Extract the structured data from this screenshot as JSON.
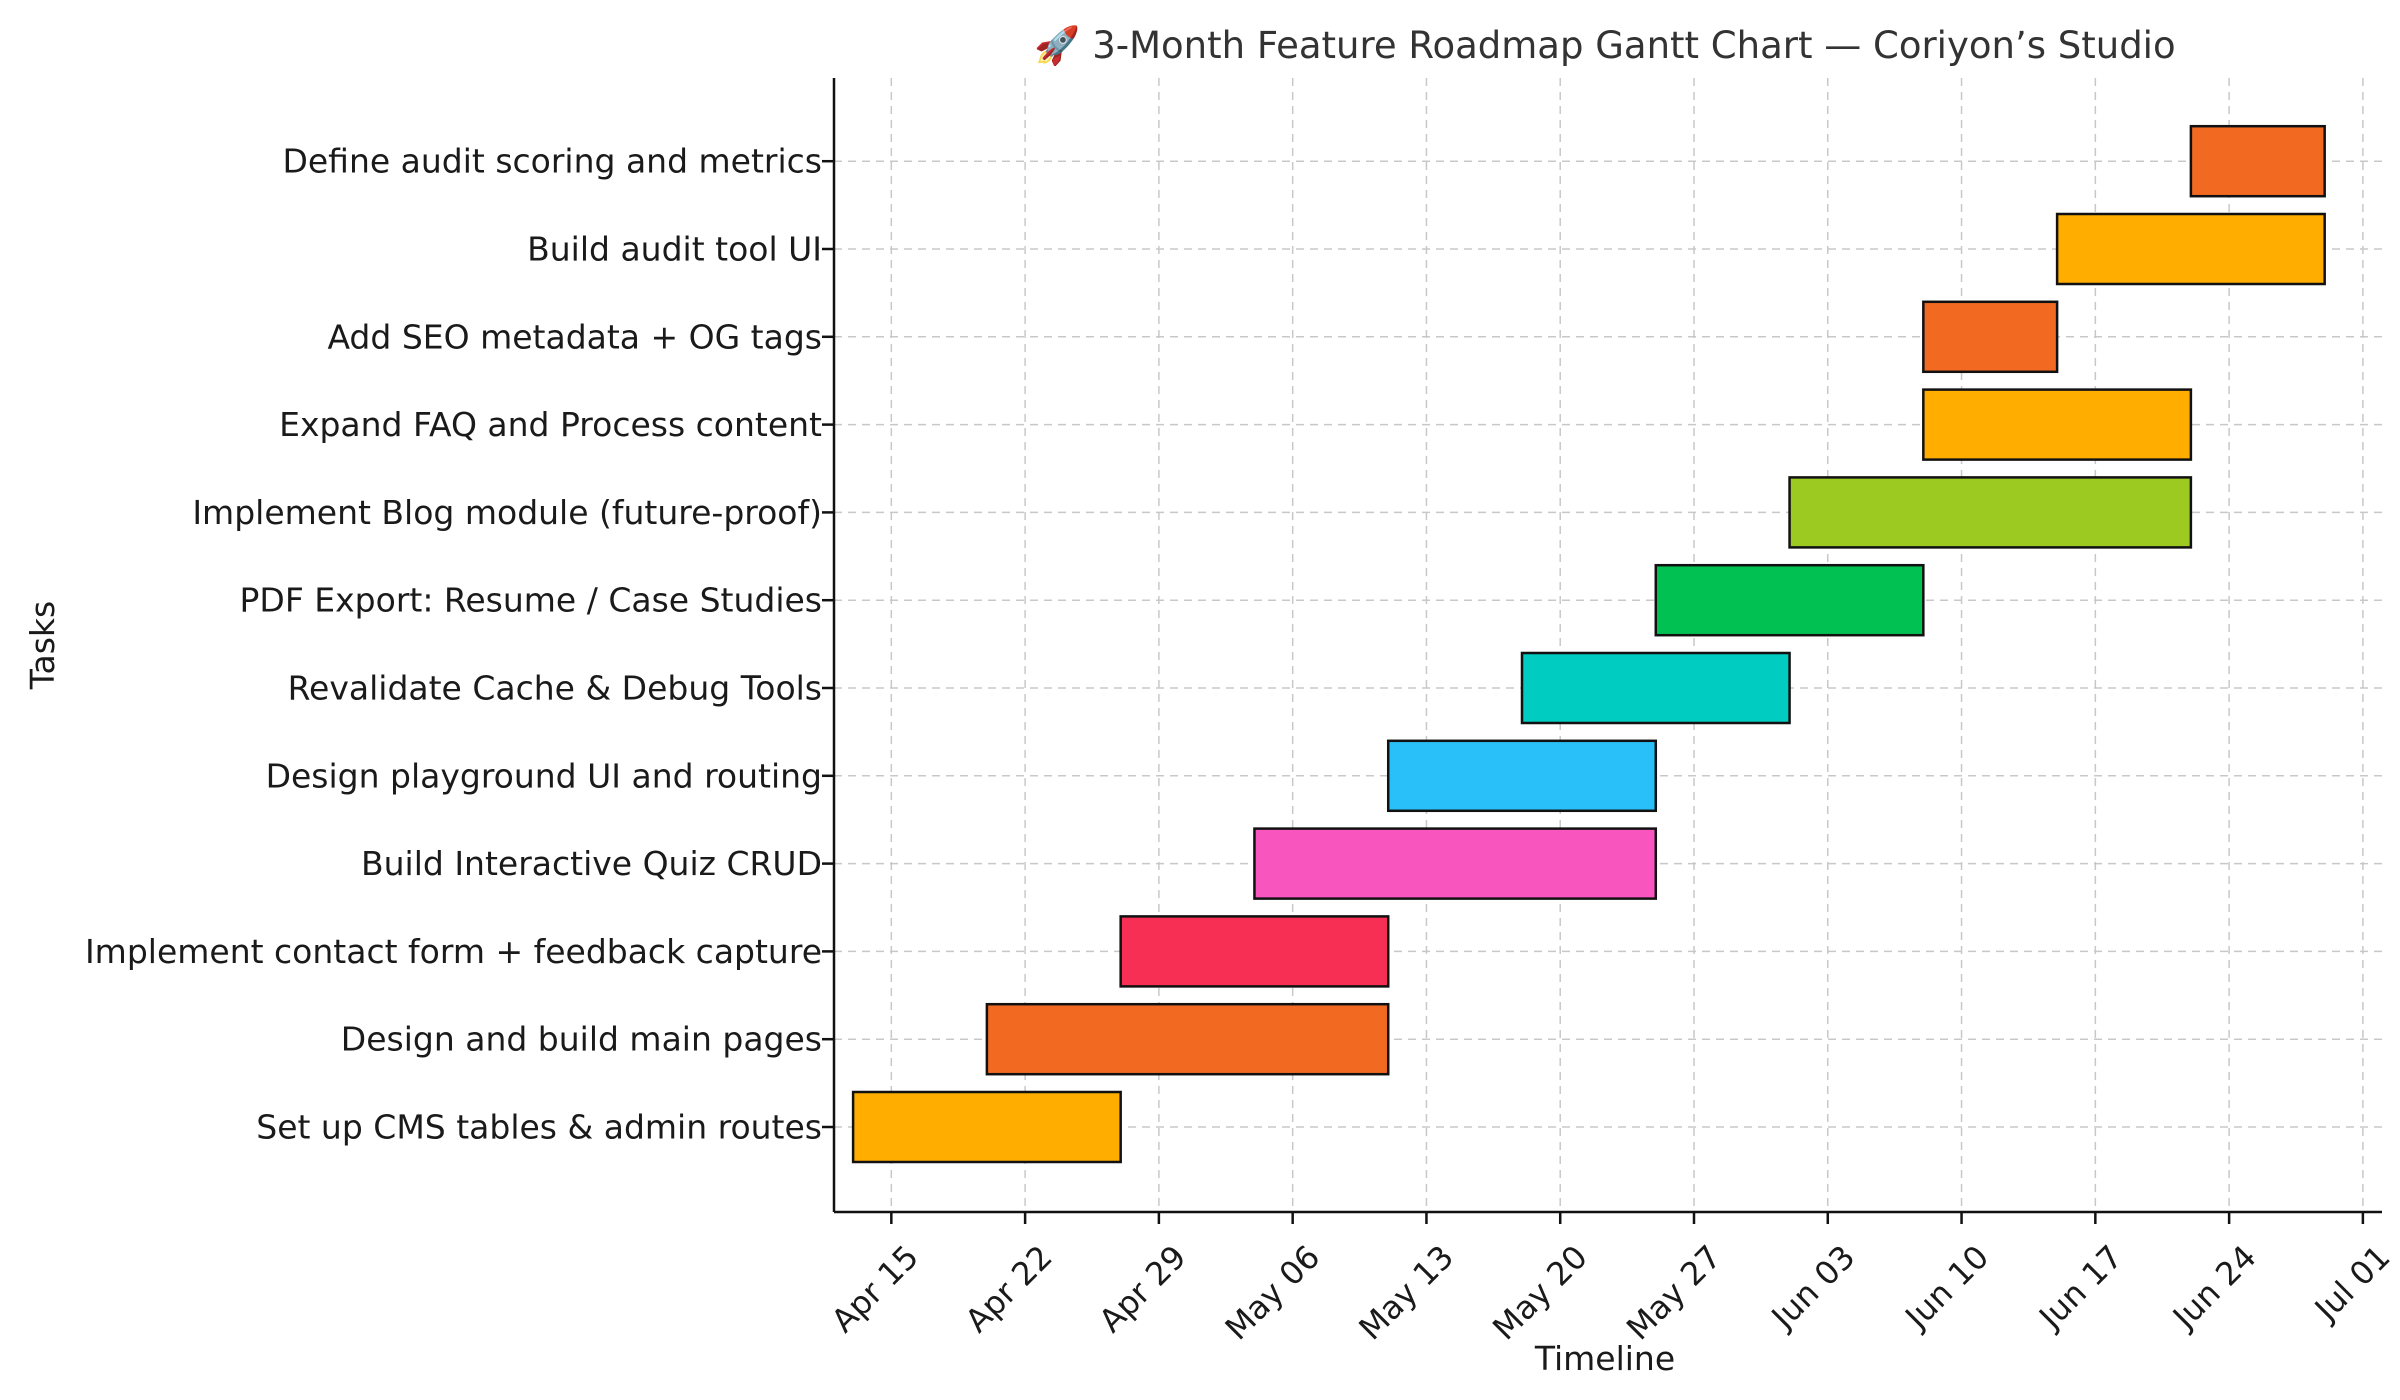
{
  "chart_data": {
    "type": "gantt",
    "title": "🚀 3-Month Feature Roadmap Gantt Chart — Coriyon’s Studio",
    "xlabel": "Timeline",
    "ylabel": "Tasks",
    "grid": true,
    "x_axis": {
      "type": "date",
      "min": "2024-04-12",
      "max": "2024-07-02",
      "ticks": [
        "2024-04-15",
        "2024-04-22",
        "2024-04-29",
        "2024-05-06",
        "2024-05-13",
        "2024-05-20",
        "2024-05-27",
        "2024-06-03",
        "2024-06-10",
        "2024-06-17",
        "2024-06-24",
        "2024-07-01"
      ],
      "tick_labels": [
        "Apr 15",
        "Apr 22",
        "Apr 29",
        "May 06",
        "May 13",
        "May 20",
        "May 27",
        "Jun 03",
        "Jun 10",
        "Jun 17",
        "Jun 24",
        "Jul 01"
      ]
    },
    "tasks": [
      {
        "name": "Set up CMS tables & admin routes",
        "start": "2024-04-13",
        "end": "2024-04-27",
        "color": "#FFAE00"
      },
      {
        "name": "Design and build main pages",
        "start": "2024-04-20",
        "end": "2024-05-11",
        "color": "#F26A21"
      },
      {
        "name": "Implement contact form + feedback capture",
        "start": "2024-04-27",
        "end": "2024-05-11",
        "color": "#F72F55"
      },
      {
        "name": "Build Interactive Quiz CRUD",
        "start": "2024-05-04",
        "end": "2024-05-25",
        "color": "#F955BF"
      },
      {
        "name": "Design playground UI and routing",
        "start": "2024-05-11",
        "end": "2024-05-25",
        "color": "#29BFF8"
      },
      {
        "name": "Revalidate Cache & Debug Tools",
        "start": "2024-05-18",
        "end": "2024-06-01",
        "color": "#00CCC1"
      },
      {
        "name": "PDF Export: Resume / Case Studies",
        "start": "2024-05-25",
        "end": "2024-06-08",
        "color": "#00C152"
      },
      {
        "name": "Implement Blog module (future-proof)",
        "start": "2024-06-01",
        "end": "2024-06-22",
        "color": "#9CCA21"
      },
      {
        "name": "Expand FAQ and Process content",
        "start": "2024-06-08",
        "end": "2024-06-22",
        "color": "#FFAE00"
      },
      {
        "name": "Add SEO metadata + OG tags",
        "start": "2024-06-08",
        "end": "2024-06-15",
        "color": "#F26A21"
      },
      {
        "name": "Build audit tool UI",
        "start": "2024-06-15",
        "end": "2024-06-29",
        "color": "#FFAE00"
      },
      {
        "name": "Define audit scoring and metrics",
        "start": "2024-06-22",
        "end": "2024-06-29",
        "color": "#F26A21"
      }
    ]
  }
}
